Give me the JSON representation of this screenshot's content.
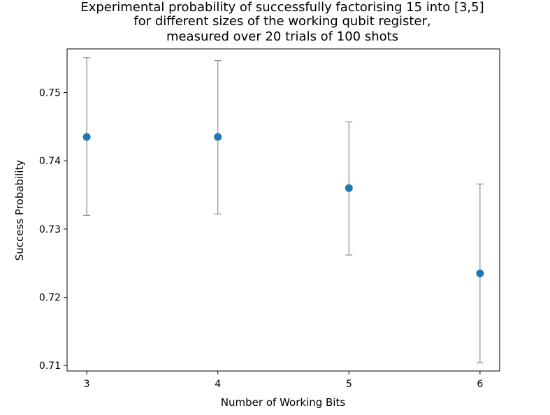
{
  "chart_data": {
    "type": "scatter",
    "title_lines": [
      "Experimental probability of successfully factorising 15 into [3,5]",
      "for different sizes of the working qubit register,",
      "measured over 20 trials of 100 shots"
    ],
    "xlabel": "Number of Working Bits",
    "ylabel": "Success Probability",
    "x": [
      3,
      4,
      5,
      6
    ],
    "y": [
      0.7435,
      0.7435,
      0.736,
      0.7235
    ],
    "error_low": [
      0.732,
      0.7322,
      0.7262,
      0.7104
    ],
    "error_high": [
      0.7551,
      0.7547,
      0.7457,
      0.7366
    ],
    "xticks": [
      "3",
      "4",
      "5",
      "6"
    ],
    "yticks": [
      "0.71",
      "0.72",
      "0.73",
      "0.74",
      "0.75"
    ],
    "xlim": [
      2.85,
      6.15
    ],
    "ylim": [
      0.7092,
      0.7564
    ],
    "grid": false,
    "colors": {
      "marker": "#1f77b4",
      "errorbar": "#8c8c8c",
      "frame": "#000000"
    }
  }
}
